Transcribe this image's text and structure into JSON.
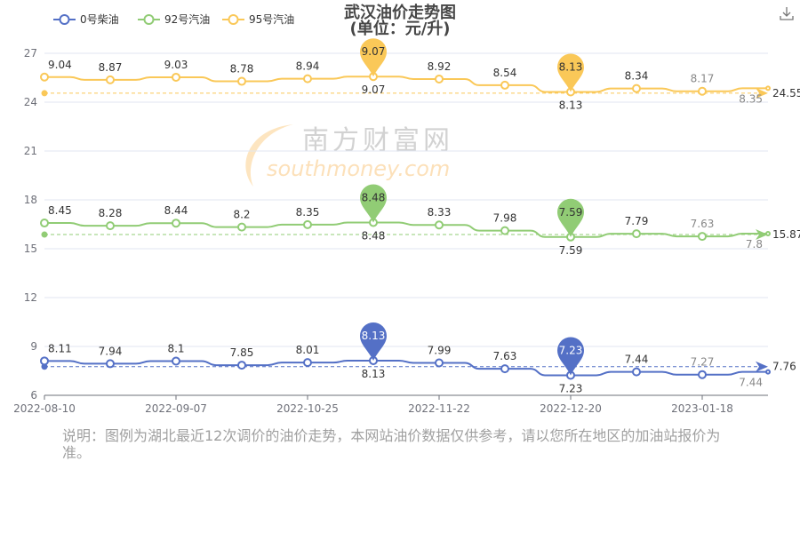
{
  "title": "武汉油价走势图",
  "subtitle": "(单位：元/升)",
  "toolbar": {
    "download_icon": "download-icon"
  },
  "note": "说明：图例为湖北最近12次调价的油价走势，本网站油价数据仅供参考，请以您所在地区的加油站报价为准。",
  "watermark": {
    "cn": "南方财富网",
    "en": "southmoney.com"
  },
  "chart_data": {
    "type": "line",
    "categories": [
      "2022-08-10",
      "",
      "2022-09-07",
      "",
      "2022-10-25",
      "",
      "2022-11-22",
      "",
      "2022-12-20",
      "",
      "2023-01-18",
      ""
    ],
    "y_ticks": [
      "6",
      "9",
      "12",
      "15",
      "18",
      "21",
      "24",
      "27"
    ],
    "ylim": [
      6,
      27
    ],
    "grid": true,
    "legend_position": "top",
    "series": [
      {
        "name": "0号柴油",
        "color": "#5470c6",
        "values": [
          8.11,
          7.94,
          8.1,
          7.85,
          8.01,
          8.13,
          7.99,
          7.63,
          7.23,
          7.44,
          7.27,
          7.44
        ],
        "average_line": "7.76",
        "max": "8.13",
        "min": "7.23"
      },
      {
        "name": "92号汽油",
        "color": "#91cc75",
        "values": [
          8.45,
          8.28,
          8.44,
          8.2,
          8.35,
          8.48,
          8.33,
          7.98,
          7.59,
          7.79,
          7.63,
          7.8
        ],
        "average_line": "15.87",
        "max": "8.48",
        "min": "7.59"
      },
      {
        "name": "95号汽油",
        "color": "#fac858",
        "values": [
          9.04,
          8.87,
          9.03,
          8.78,
          8.94,
          9.07,
          8.92,
          8.54,
          8.13,
          8.34,
          8.17,
          8.35
        ],
        "average_line": "24.55",
        "max": "9.07",
        "min": "8.13"
      }
    ]
  }
}
